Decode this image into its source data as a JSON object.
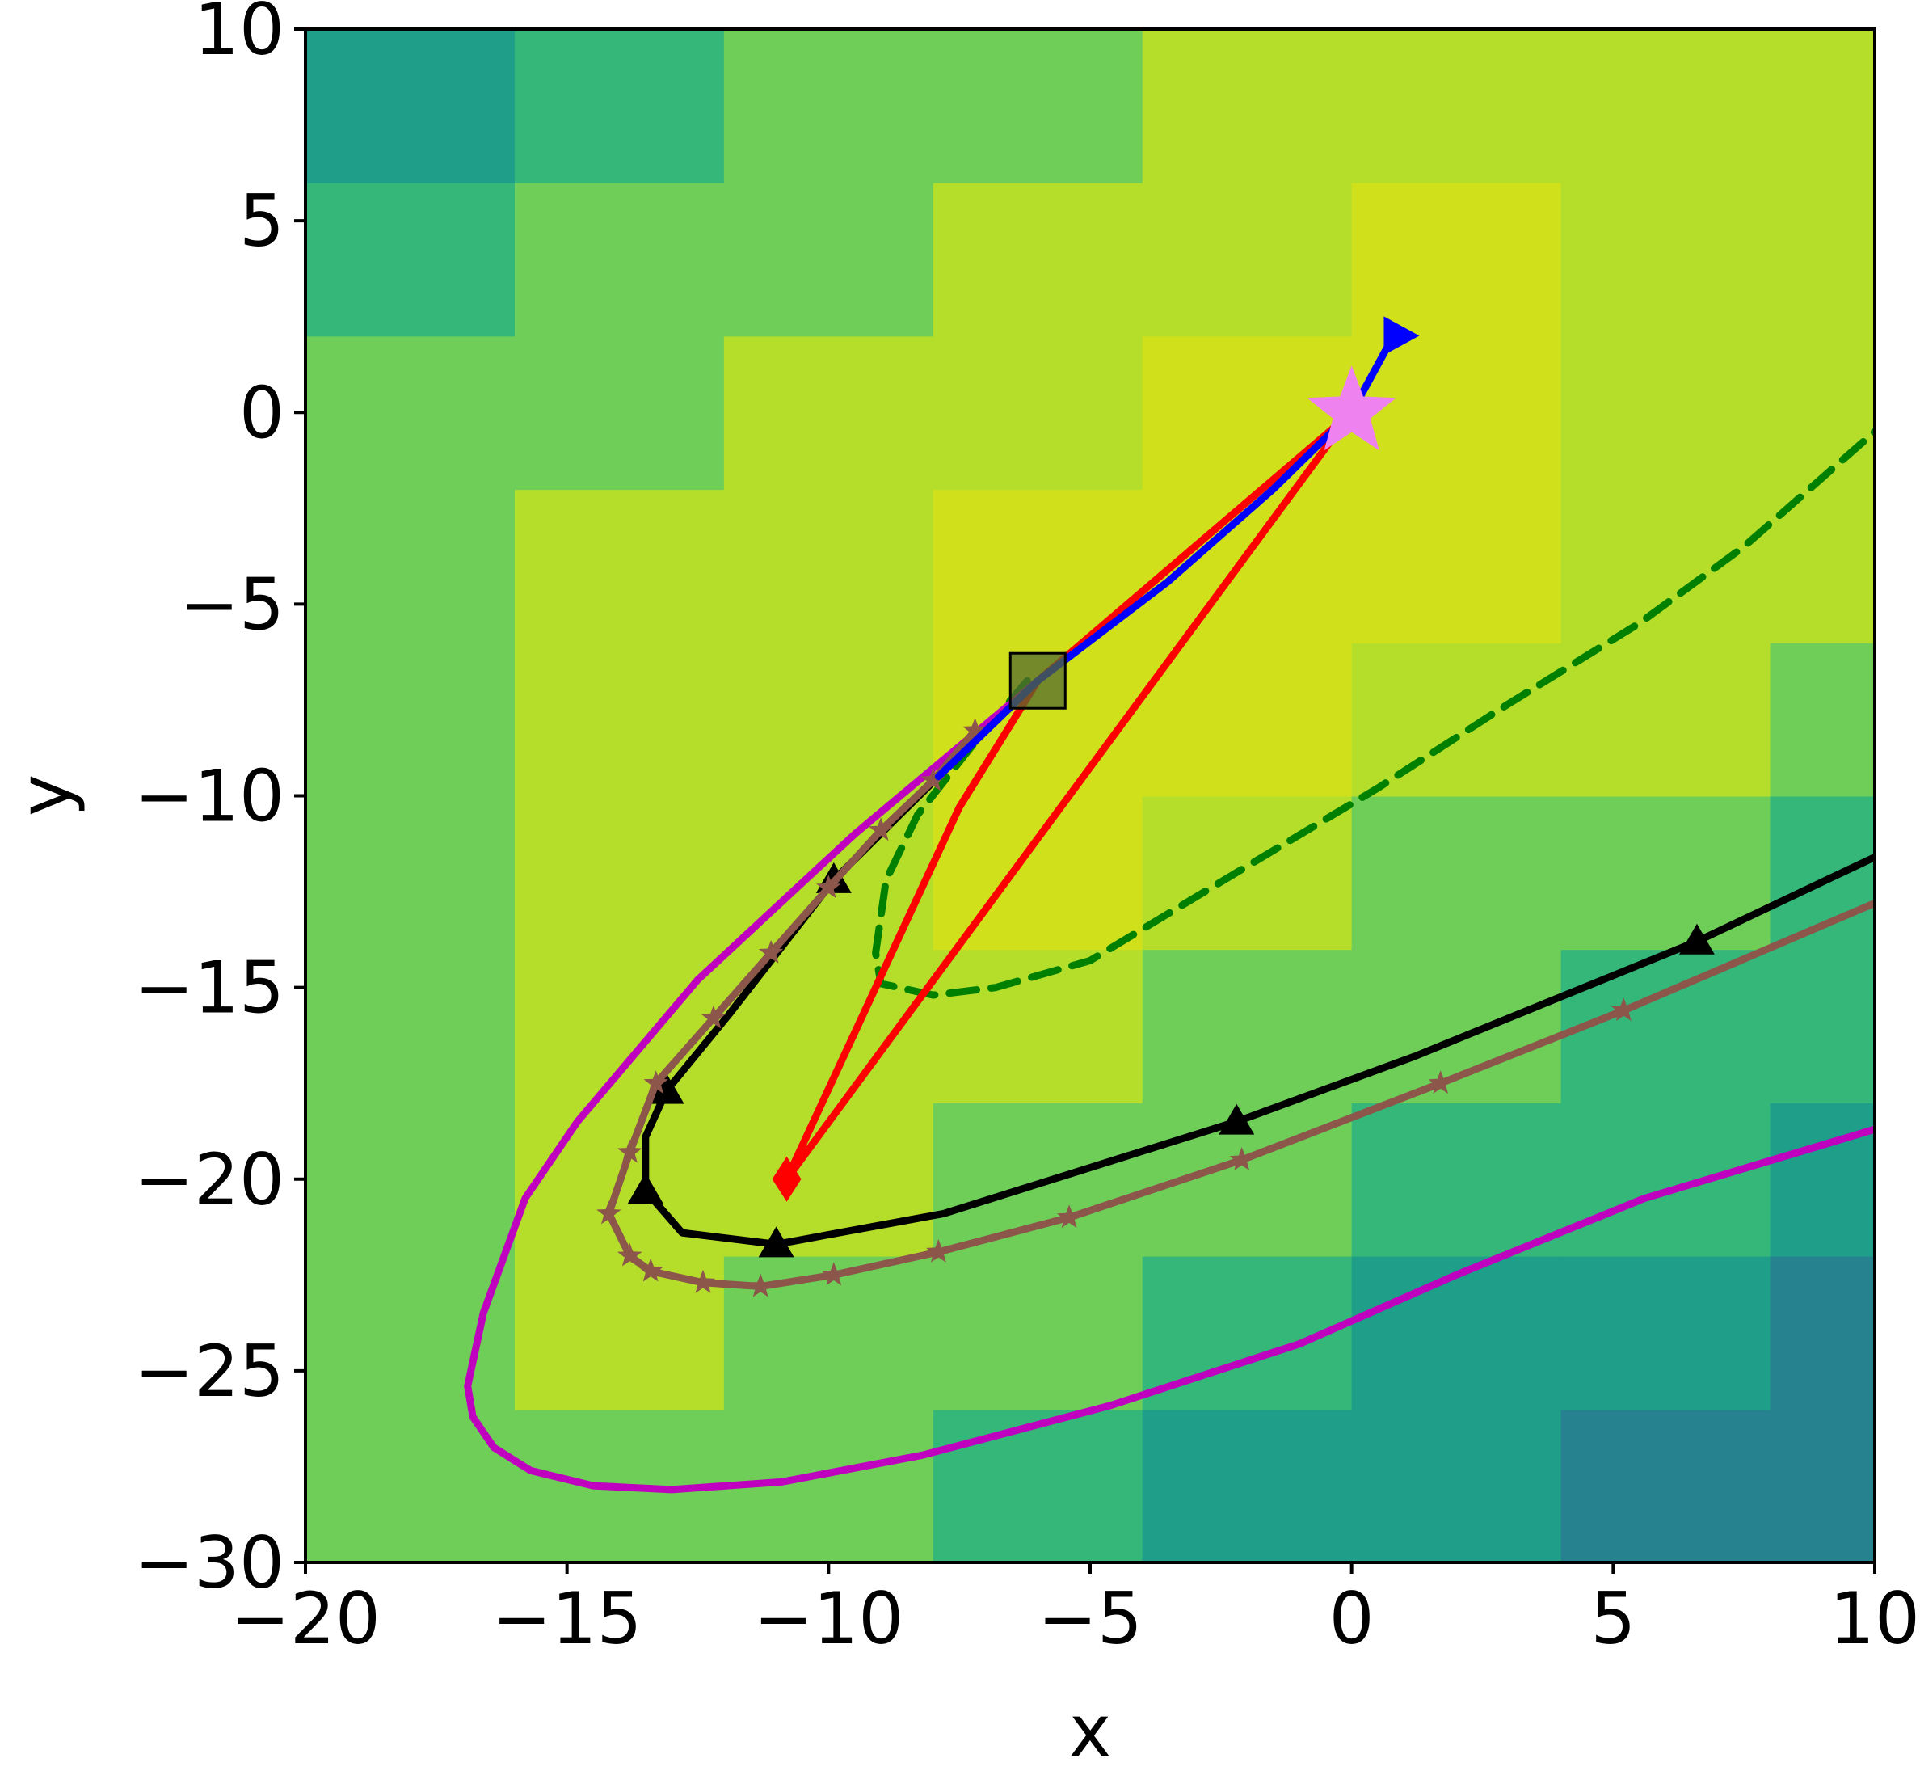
{
  "chart_data": {
    "type": "contour",
    "xlabel": "x",
    "ylabel": "y",
    "xlim": [
      -20,
      10
    ],
    "ylim": [
      -30,
      10
    ],
    "x_ticks": [
      -20,
      -15,
      -10,
      -5,
      0,
      5,
      10
    ],
    "y_ticks": [
      -30,
      -25,
      -20,
      -15,
      -10,
      -5,
      0,
      5,
      10
    ],
    "x_tick_labels": [
      "−20",
      "−15",
      "−10",
      "−5",
      "0",
      "5",
      "10"
    ],
    "y_tick_labels": [
      "−30",
      "−25",
      "−20",
      "−15",
      "−10",
      "−5",
      "0",
      "5",
      "10"
    ],
    "grid": false,
    "legend": "none",
    "contour_levels_colors": [
      "#471365",
      "#3e4a89",
      "#31688e",
      "#26828e",
      "#1f9e89",
      "#35b779",
      "#6ece58",
      "#b5de2b",
      "#d0e11c"
    ],
    "series": [
      {
        "color": "#008000",
        "style": "dashed",
        "marker": "none",
        "points": [
          [
            -6.2,
            -7.0
          ],
          [
            -7.2,
            -8.6
          ],
          [
            -8.3,
            -10.5
          ],
          [
            -8.9,
            -12.2
          ],
          [
            -9.1,
            -14.1
          ],
          [
            -9.0,
            -14.9
          ],
          [
            -8.0,
            -15.2
          ],
          [
            -6.8,
            -15.0
          ],
          [
            -5.0,
            -14.3
          ],
          [
            -2.2,
            -12.0
          ],
          [
            0.5,
            -9.8
          ],
          [
            3.0,
            -7.6
          ],
          [
            5.5,
            -5.5
          ],
          [
            7.5,
            -3.5
          ],
          [
            10.0,
            -0.5
          ]
        ]
      },
      {
        "color": "#ff0000",
        "style": "solid",
        "marker": "none",
        "points": [
          [
            0.0,
            0.0
          ],
          [
            -6.0,
            -7.0
          ],
          [
            -7.5,
            -10.3
          ],
          [
            -10.8,
            -20.0
          ],
          [
            0.0,
            0.0
          ]
        ]
      },
      {
        "color": "#bf00bf",
        "style": "solid",
        "marker": "none",
        "points": [
          [
            -6.0,
            -7.0
          ],
          [
            -9.5,
            -11.0
          ],
          [
            -12.5,
            -14.8
          ],
          [
            -14.8,
            -18.5
          ],
          [
            -15.8,
            -20.5
          ],
          [
            -16.6,
            -23.5
          ],
          [
            -16.9,
            -25.4
          ],
          [
            -16.8,
            -26.2
          ],
          [
            -16.4,
            -27.0
          ],
          [
            -15.7,
            -27.6
          ],
          [
            -14.5,
            -28.0
          ],
          [
            -13.0,
            -28.1
          ],
          [
            -10.9,
            -27.9
          ],
          [
            -8.2,
            -27.2
          ],
          [
            -4.6,
            -25.9
          ],
          [
            -1.0,
            -24.3
          ],
          [
            2.0,
            -22.5
          ],
          [
            5.6,
            -20.5
          ],
          [
            10.0,
            -18.7
          ]
        ]
      },
      {
        "color": "#000000",
        "style": "solid",
        "marker": "triangle",
        "points": [
          [
            -6.0,
            -7.0
          ],
          [
            -7.9,
            -9.5
          ],
          [
            -9.9,
            -12.2
          ],
          [
            -11.9,
            -15.7
          ],
          [
            -13.1,
            -17.7
          ],
          [
            -13.5,
            -18.9
          ],
          [
            -13.5,
            -20.3
          ],
          [
            -12.8,
            -21.4
          ],
          [
            -11.0,
            -21.7
          ],
          [
            -7.8,
            -20.9
          ],
          [
            -2.2,
            -18.5
          ],
          [
            1.2,
            -16.8
          ],
          [
            6.6,
            -13.8
          ],
          [
            10.0,
            -11.6
          ]
        ]
      },
      {
        "color": "#8c564b",
        "style": "solid",
        "marker": "star",
        "points": [
          [
            -7.2,
            -8.3
          ],
          [
            -8.0,
            -9.6
          ],
          [
            -9.0,
            -10.9
          ],
          [
            -10.0,
            -12.4
          ],
          [
            -11.1,
            -14.1
          ],
          [
            -12.2,
            -15.8
          ],
          [
            -13.3,
            -17.5
          ],
          [
            -13.8,
            -19.3
          ],
          [
            -14.2,
            -20.9
          ],
          [
            -13.8,
            -22.0
          ],
          [
            -13.4,
            -22.4
          ],
          [
            -12.4,
            -22.7
          ],
          [
            -11.3,
            -22.8
          ],
          [
            -9.9,
            -22.5
          ],
          [
            -7.9,
            -21.9
          ],
          [
            -5.4,
            -21.0
          ],
          [
            -2.1,
            -19.5
          ],
          [
            1.7,
            -17.5
          ],
          [
            5.2,
            -15.6
          ],
          [
            10.0,
            -12.8
          ]
        ]
      },
      {
        "color": "#0000ff",
        "style": "solid",
        "marker": "right-triangle-end",
        "points": [
          [
            -7.9,
            -9.5
          ],
          [
            -6.0,
            -7.0
          ],
          [
            -3.5,
            -4.4
          ],
          [
            -1.5,
            -2.0
          ],
          [
            0.0,
            0.0
          ],
          [
            0.8,
            2.0
          ]
        ]
      }
    ],
    "special_markers": [
      {
        "shape": "star",
        "color": "#ee82ee",
        "x": 0.0,
        "y": 0.0
      },
      {
        "shape": "square",
        "color": "#556b2f",
        "x": -6.0,
        "y": -7.0
      },
      {
        "shape": "diamond",
        "color": "#ff0000",
        "x": -10.8,
        "y": -20.0
      },
      {
        "shape": "right-triangle",
        "color": "#0000ff",
        "x": 0.8,
        "y": 2.0
      }
    ]
  }
}
